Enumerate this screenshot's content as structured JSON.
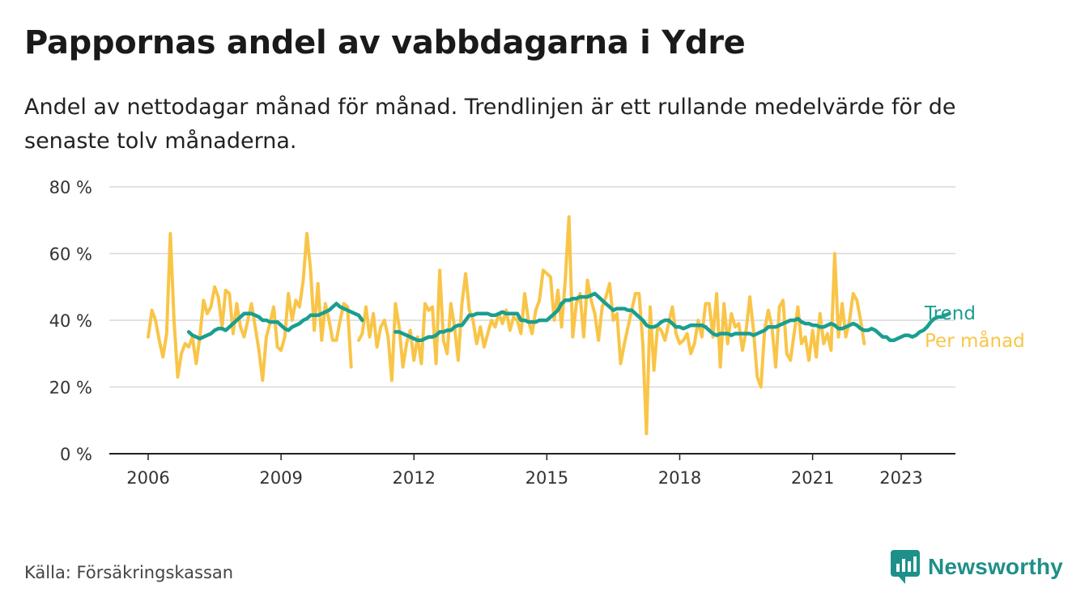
{
  "header": {
    "title": "Pappornas andel av vabbdagarna i Ydre",
    "subtitle": "Andel av nettodagar månad för månad. Trendlinjen är ett rullande medelvärde för de senaste tolv månaderna."
  },
  "footer": {
    "source": "Källa: Försäkringskassan",
    "brand": "Newsworthy"
  },
  "colors": {
    "monthly": "#f9c548",
    "trend": "#1a9e8f",
    "brand": "#1f8f89",
    "grid": "#d9d9d9",
    "axis": "#222222"
  },
  "chart_data": {
    "type": "line",
    "x_axis": {
      "range": [
        "2006-01",
        "2023-12"
      ],
      "tick_labels": [
        "2006",
        "2009",
        "2012",
        "2015",
        "2018",
        "2021",
        "2023"
      ]
    },
    "y_axis": {
      "range": [
        0,
        80
      ],
      "tick_labels": [
        "0 %",
        "20 %",
        "40 %",
        "60 %",
        "80 %"
      ],
      "unit": "%"
    },
    "grid": true,
    "legend": "line-end labels, right",
    "series": [
      {
        "name": "Per månad",
        "color": "#f9c548",
        "segments": [
          {
            "start": "2006-01",
            "values": [
              35,
              43,
              40,
              34,
              29,
              36,
              66,
              40,
              23,
              30,
              33,
              32,
              35,
              27,
              35,
              46,
              42,
              44,
              50,
              47,
              38,
              49,
              48,
              36,
              45,
              38,
              35,
              40,
              45,
              38,
              31,
              22,
              35,
              39,
              44,
              32,
              31,
              35,
              48,
              40,
              46,
              44,
              52,
              66,
              55,
              37,
              51,
              34,
              45,
              40,
              34,
              34,
              40,
              45,
              44,
              26
            ]
          },
          {
            "start": "2010-10",
            "values": [
              34,
              36,
              44,
              35,
              42,
              32,
              38,
              40,
              35,
              22,
              45,
              38,
              26,
              33,
              37,
              28,
              35,
              27,
              45,
              43,
              44,
              27,
              55,
              34,
              30,
              45,
              38,
              28,
              45,
              54,
              43,
              40,
              33,
              38,
              32,
              36,
              40,
              38,
              42,
              39,
              43,
              37,
              41,
              40,
              36,
              48,
              40,
              36,
              43,
              46,
              55,
              54,
              53,
              40,
              49,
              38,
              52,
              71,
              35,
              45,
              48,
              35,
              52,
              46,
              42,
              34,
              44,
              47,
              51,
              40,
              42,
              27,
              33,
              38,
              43,
              48,
              48,
              33,
              6,
              44,
              25,
              38,
              37,
              34,
              39,
              44,
              36,
              33,
              34,
              36,
              30,
              33,
              40,
              35,
              45,
              45,
              35,
              48,
              26,
              45,
              33,
              42,
              38,
              39,
              31,
              37,
              47,
              37,
              23,
              20,
              37,
              43,
              38,
              26,
              44,
              46,
              30,
              28,
              36,
              44,
              33,
              35,
              28,
              37,
              29,
              42,
              33,
              36,
              31,
              60,
              35,
              45,
              35,
              40,
              48,
              46,
              40,
              33
            ]
          }
        ]
      },
      {
        "name": "Trend",
        "color": "#1a9e8f",
        "segments": [
          {
            "start": "2006-12",
            "values": [
              36.5,
              35.5,
              35,
              34.5,
              35,
              35.5,
              36,
              37,
              37.5,
              37.5,
              37,
              38,
              39,
              40,
              41,
              42,
              42,
              42,
              41.5,
              41,
              40,
              40,
              39.5,
              39.5,
              39.5,
              38.5,
              37.5,
              37,
              38,
              38.5,
              39,
              40,
              40.5,
              41.5,
              41.5,
              41.5,
              42,
              42.5,
              43,
              44,
              45,
              44,
              43.5,
              43,
              42.5,
              42,
              41.5,
              40
            ]
          },
          {
            "start": "2011-08",
            "values": [
              36.5,
              36.5,
              36,
              35.5,
              35,
              34.5,
              34,
              34,
              34.5,
              35,
              35,
              35.5,
              36.5,
              36.5,
              37,
              37,
              38,
              38.5,
              38.5,
              40,
              41.5,
              41.5,
              42,
              42,
              42,
              42,
              41.5,
              41.5,
              42,
              42.5,
              42,
              42,
              42,
              42,
              40,
              40,
              39.5,
              39.5,
              39.5,
              40,
              40,
              40,
              41,
              42,
              43,
              45,
              46,
              46,
              46.5,
              46.5,
              47,
              47,
              47,
              47.5,
              48,
              47,
              46,
              45,
              44,
              43,
              43.5,
              43.5,
              43.5,
              43,
              43,
              42,
              41,
              40,
              38.5,
              38,
              38,
              38.5,
              39.5,
              40,
              40,
              39,
              38,
              38,
              37.5,
              38,
              38.5,
              38.5,
              38.5,
              38.5,
              38,
              37,
              36,
              35.5,
              36,
              36,
              36,
              35.5,
              36,
              36,
              36,
              36,
              36,
              35.5,
              36,
              36.5,
              37,
              38,
              38,
              38,
              38.5,
              39,
              39.5,
              40,
              40,
              40.5,
              39.5,
              39,
              39,
              38.5,
              38.5,
              38,
              38,
              38.5,
              39,
              38.5,
              37.5,
              37.5,
              38,
              38.5,
              39,
              38.5,
              37.5,
              37,
              37,
              37.5,
              37,
              36,
              35,
              35,
              34,
              34,
              34.5,
              35,
              35.5,
              35.5,
              35,
              35.5,
              36.5,
              37,
              38,
              39.5,
              40.5,
              41,
              41,
              41.5,
              42
            ]
          }
        ]
      }
    ]
  }
}
